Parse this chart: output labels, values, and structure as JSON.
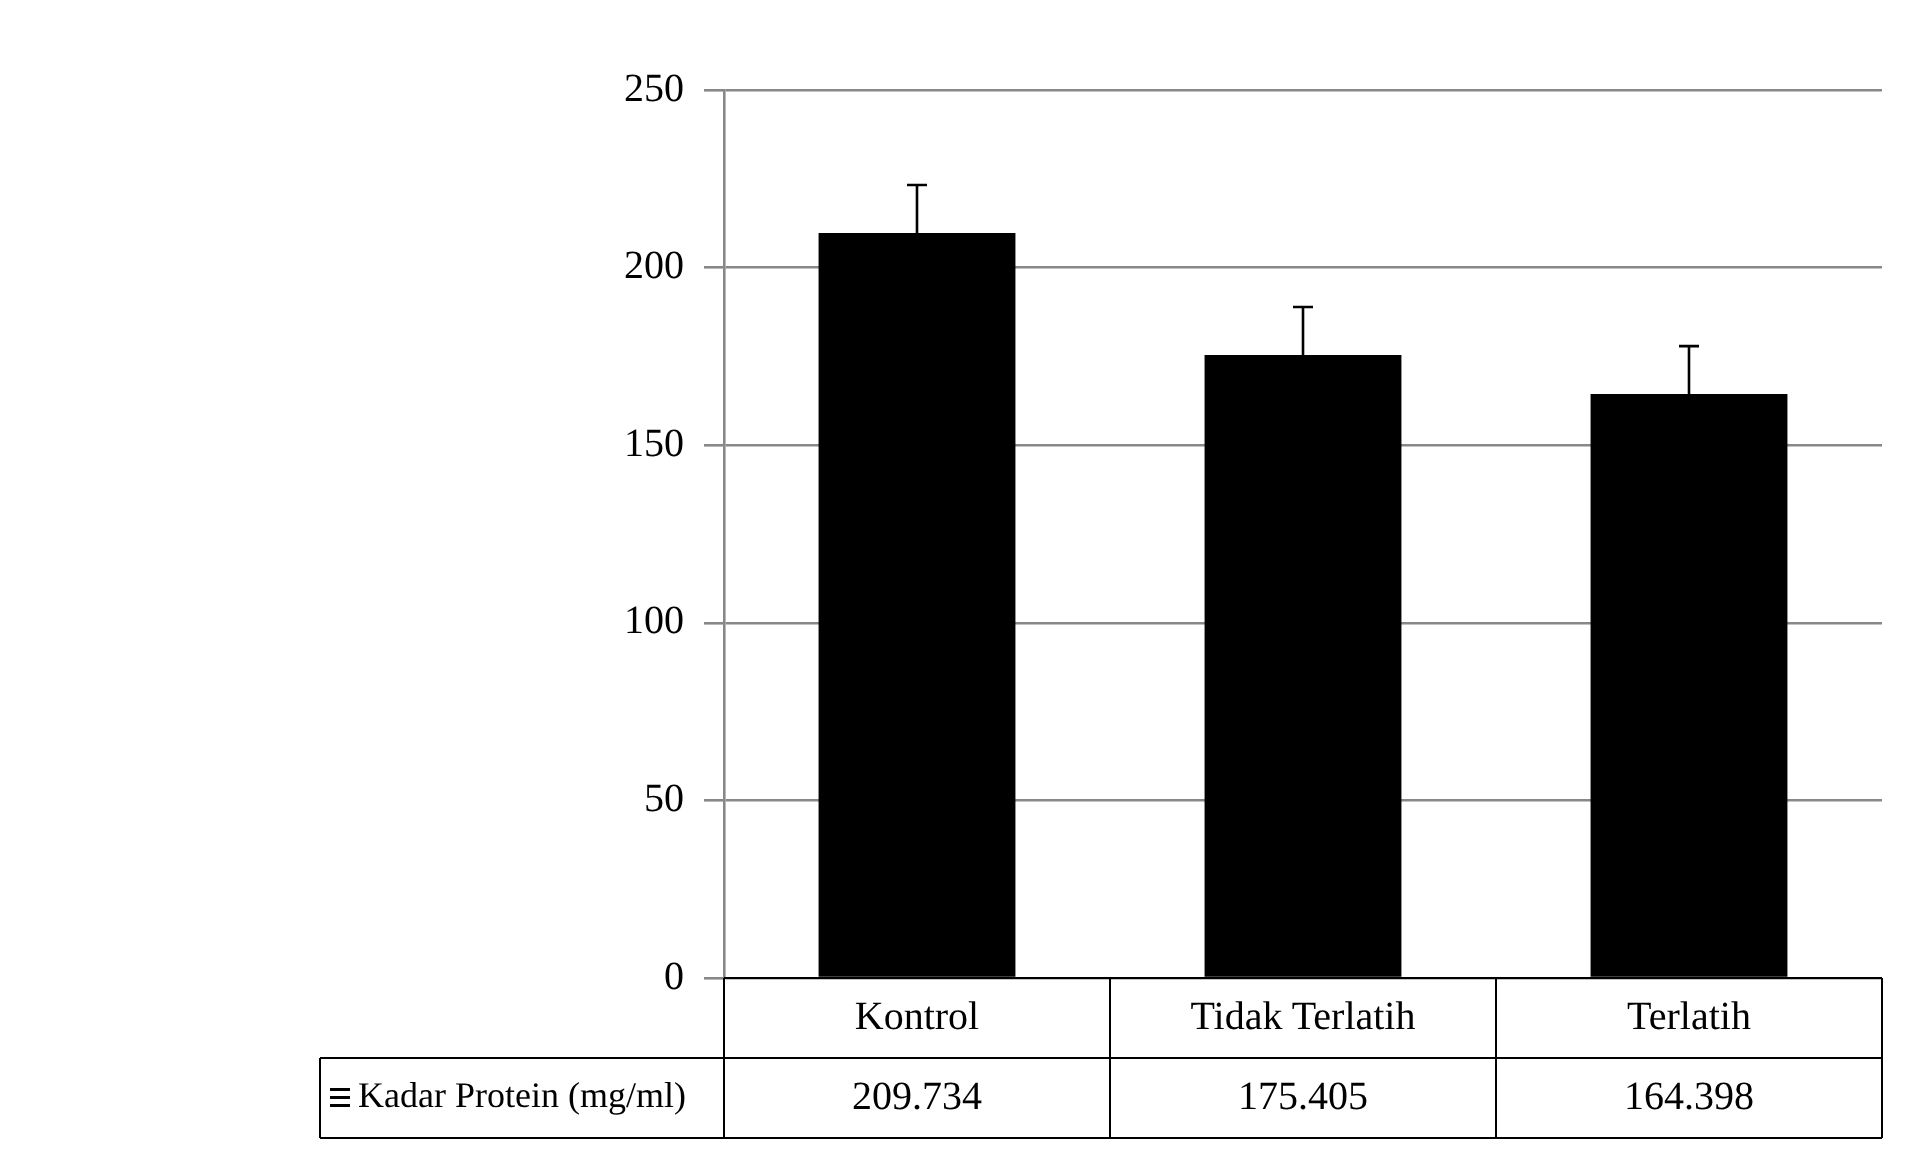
{
  "chart_data": {
    "type": "bar",
    "categories": [
      "Kontrol",
      "Tidak Terlatih",
      "Terlatih"
    ],
    "series": [
      {
        "name": "Kadar Protein (mg/ml)",
        "color": "#000000",
        "values": [
          209.734,
          175.405,
          164.398
        ],
        "errors": [
          13.5,
          13.5,
          13.5
        ]
      }
    ],
    "ylim": [
      0,
      250
    ],
    "yticks": [
      0,
      50,
      100,
      150,
      200,
      250
    ],
    "grid": "y",
    "data_labels": true,
    "legend": "bottom"
  }
}
